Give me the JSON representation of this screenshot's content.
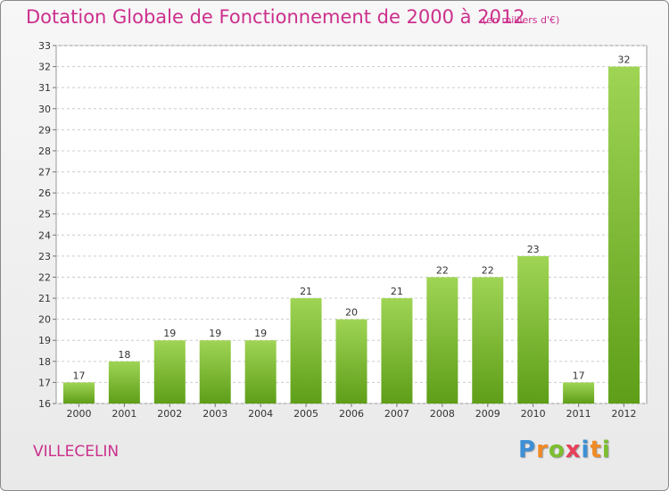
{
  "title": "Dotation Globale de Fonctionnement de 2000 à 2012",
  "unit": "(en milliers d'€)",
  "commune": "VILLECELIN",
  "logo": {
    "letters": [
      "P",
      "r",
      "o",
      "x",
      "i",
      "t",
      "i"
    ],
    "colors": [
      "#3d8fd6",
      "#f08a24",
      "#7cbf2f",
      "#e8405a",
      "#3d8fd6",
      "#f08a24",
      "#7cbf2f"
    ]
  },
  "colors": {
    "title": "#cc2f8c",
    "bar_top": "#9fd455",
    "bar_bottom": "#5e9e18",
    "grid": "#cccccc"
  },
  "chart_data": {
    "type": "bar",
    "categories": [
      "2000",
      "2001",
      "2002",
      "2003",
      "2004",
      "2005",
      "2006",
      "2007",
      "2008",
      "2009",
      "2010",
      "2011",
      "2012"
    ],
    "values": [
      17,
      18,
      19,
      19,
      19,
      21,
      20,
      21,
      22,
      22,
      23,
      17,
      32
    ],
    "ylim": [
      16,
      33
    ],
    "yticks": [
      16,
      17,
      18,
      19,
      20,
      21,
      22,
      23,
      24,
      25,
      26,
      27,
      28,
      29,
      30,
      31,
      32,
      33
    ],
    "grid": true,
    "xlabel": "",
    "ylabel": ""
  }
}
